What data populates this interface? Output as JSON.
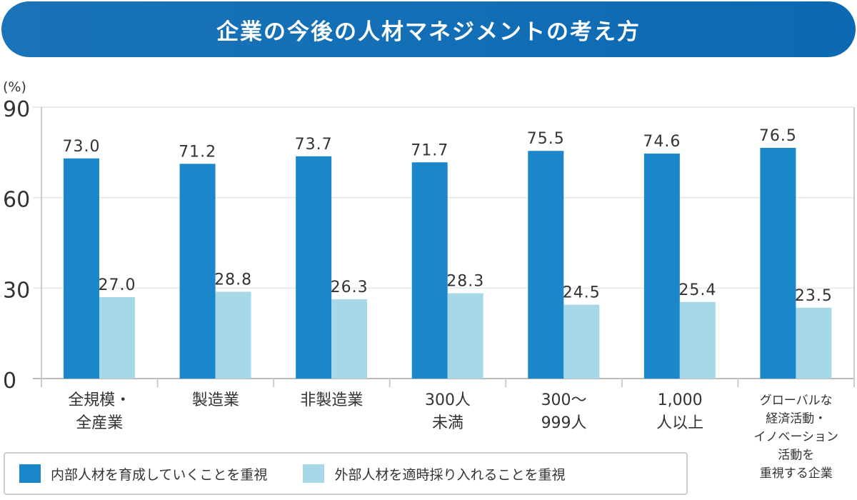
{
  "chart_data": {
    "type": "bar",
    "title": "企業の今後の人材マネジメントの考え方",
    "ylabel": "(%)",
    "ylim": [
      0,
      90
    ],
    "yticks": [
      0,
      30,
      60,
      90
    ],
    "grid": true,
    "legend_position": "bottom-left",
    "categories": [
      [
        "全規模・",
        "全産業"
      ],
      [
        "製造業"
      ],
      [
        "非製造業"
      ],
      [
        "300人",
        "未満"
      ],
      [
        "300～",
        "999人"
      ],
      [
        "1,000",
        "人以上"
      ],
      [
        "グローバルな",
        "経済活動・",
        "イノベーション",
        "活動を",
        "重視する企業"
      ]
    ],
    "series": [
      {
        "name": "内部人材を育成していくことを重視",
        "color": "#1b87cb",
        "values": [
          73.0,
          71.2,
          73.7,
          71.7,
          75.5,
          74.6,
          76.5
        ],
        "labels": [
          "73.0",
          "71.2",
          "73.7",
          "71.7",
          "75.5",
          "74.6",
          "76.5"
        ]
      },
      {
        "name": "外部人材を適時採り入れることを重視",
        "color": "#a7d8e8",
        "values": [
          27.0,
          28.8,
          26.3,
          28.3,
          24.5,
          25.4,
          23.5
        ],
        "labels": [
          "27.0",
          "28.8",
          "26.3",
          "28.3",
          "24.5",
          "25.4",
          "23.5"
        ]
      }
    ]
  }
}
